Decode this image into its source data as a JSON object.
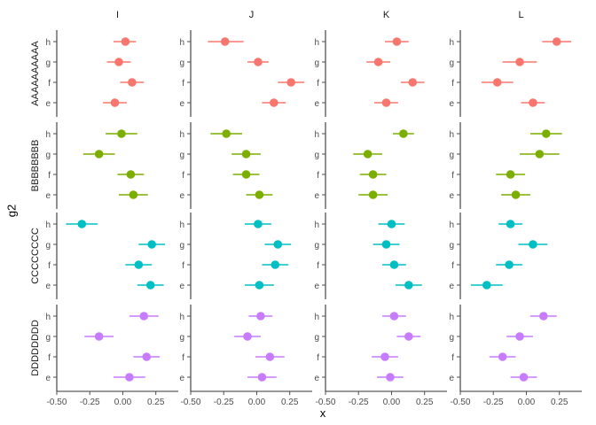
{
  "chart_data": {
    "type": "scatter",
    "subtype": "pointrange",
    "xlabel": "x",
    "ylabel": "g2",
    "xlim": [
      -0.5,
      0.42
    ],
    "xticks": [
      -0.5,
      -0.25,
      0.0,
      0.25
    ],
    "xtick_labels": [
      "-0.50",
      "-0.25",
      "0.00",
      "0.25"
    ],
    "facet_columns": [
      "I",
      "J",
      "K",
      "L"
    ],
    "facet_rows": [
      {
        "name": "AAAAAAAAAA",
        "color": "#F8766D"
      },
      {
        "name": "BBBBBBBB",
        "color": "#7CAE00"
      },
      {
        "name": "CCCCCCCC",
        "color": "#00BFC4"
      },
      {
        "name": "DDDDDDDD",
        "color": "#C77CFF"
      }
    ],
    "categories": [
      "h",
      "g",
      "f",
      "e"
    ],
    "grid": false,
    "legend": "none",
    "panels": [
      [
        {
          "h": [
            0.02,
            -0.07,
            0.1
          ],
          "g": [
            -0.03,
            -0.12,
            0.06
          ],
          "f": [
            0.07,
            -0.02,
            0.16
          ],
          "e": [
            -0.06,
            -0.15,
            0.03
          ]
        },
        {
          "h": [
            -0.24,
            -0.37,
            -0.1
          ],
          "g": [
            0.01,
            -0.07,
            0.09
          ],
          "f": [
            0.26,
            0.16,
            0.36
          ],
          "e": [
            0.13,
            0.04,
            0.22
          ]
        },
        {
          "h": [
            0.04,
            -0.05,
            0.13
          ],
          "g": [
            -0.1,
            -0.19,
            -0.01
          ],
          "f": [
            0.16,
            0.07,
            0.25
          ],
          "e": [
            -0.04,
            -0.13,
            0.05
          ]
        },
        {
          "h": [
            0.23,
            0.12,
            0.34
          ],
          "g": [
            -0.05,
            -0.18,
            0.08
          ],
          "f": [
            -0.22,
            -0.34,
            -0.1
          ],
          "e": [
            0.05,
            -0.04,
            0.14
          ]
        }
      ],
      [
        {
          "h": [
            -0.01,
            -0.13,
            0.11
          ],
          "g": [
            -0.18,
            -0.3,
            -0.06
          ],
          "f": [
            0.06,
            -0.04,
            0.16
          ],
          "e": [
            0.08,
            -0.03,
            0.19
          ]
        },
        {
          "h": [
            -0.23,
            -0.35,
            -0.11
          ],
          "g": [
            -0.08,
            -0.19,
            0.03
          ],
          "f": [
            -0.08,
            -0.18,
            0.02
          ],
          "e": [
            0.02,
            -0.08,
            0.12
          ]
        },
        {
          "h": [
            0.09,
            0.01,
            0.17
          ],
          "g": [
            -0.18,
            -0.29,
            -0.07
          ],
          "f": [
            -0.14,
            -0.24,
            -0.04
          ],
          "e": [
            -0.14,
            -0.25,
            -0.03
          ]
        },
        {
          "h": [
            0.15,
            0.03,
            0.27
          ],
          "g": [
            0.1,
            -0.05,
            0.25
          ],
          "f": [
            -0.12,
            -0.23,
            -0.01
          ],
          "e": [
            -0.08,
            -0.19,
            0.03
          ]
        }
      ],
      [
        {
          "h": [
            -0.31,
            -0.43,
            -0.19
          ],
          "g": [
            0.22,
            0.12,
            0.32
          ],
          "f": [
            0.12,
            0.02,
            0.22
          ],
          "e": [
            0.21,
            0.11,
            0.31
          ]
        },
        {
          "h": [
            0.01,
            -0.09,
            0.11
          ],
          "g": [
            0.16,
            0.06,
            0.26
          ],
          "f": [
            0.14,
            0.04,
            0.24
          ],
          "e": [
            0.02,
            -0.09,
            0.13
          ]
        },
        {
          "h": [
            0.0,
            -0.1,
            0.1
          ],
          "g": [
            -0.04,
            -0.14,
            0.06
          ],
          "f": [
            0.02,
            -0.07,
            0.11
          ],
          "e": [
            0.13,
            0.03,
            0.23
          ]
        },
        {
          "h": [
            -0.12,
            -0.21,
            -0.03
          ],
          "g": [
            0.05,
            -0.06,
            0.16
          ],
          "f": [
            -0.13,
            -0.23,
            -0.03
          ],
          "e": [
            -0.3,
            -0.42,
            -0.18
          ]
        }
      ],
      [
        {
          "h": [
            0.16,
            0.05,
            0.27
          ],
          "g": [
            -0.18,
            -0.29,
            -0.07
          ],
          "f": [
            0.18,
            0.08,
            0.28
          ],
          "e": [
            0.05,
            -0.07,
            0.17
          ]
        },
        {
          "h": [
            0.03,
            -0.06,
            0.12
          ],
          "g": [
            -0.07,
            -0.17,
            0.03
          ],
          "f": [
            0.1,
            -0.01,
            0.21
          ],
          "e": [
            0.04,
            -0.07,
            0.15
          ]
        },
        {
          "h": [
            0.02,
            -0.07,
            0.11
          ],
          "g": [
            0.13,
            0.04,
            0.22
          ],
          "f": [
            -0.05,
            -0.15,
            0.05
          ],
          "e": [
            -0.01,
            -0.11,
            0.09
          ]
        },
        {
          "h": [
            0.13,
            0.03,
            0.23
          ],
          "g": [
            -0.05,
            -0.15,
            0.05
          ],
          "f": [
            -0.18,
            -0.28,
            -0.08
          ],
          "e": [
            -0.02,
            -0.12,
            0.08
          ]
        }
      ]
    ]
  }
}
